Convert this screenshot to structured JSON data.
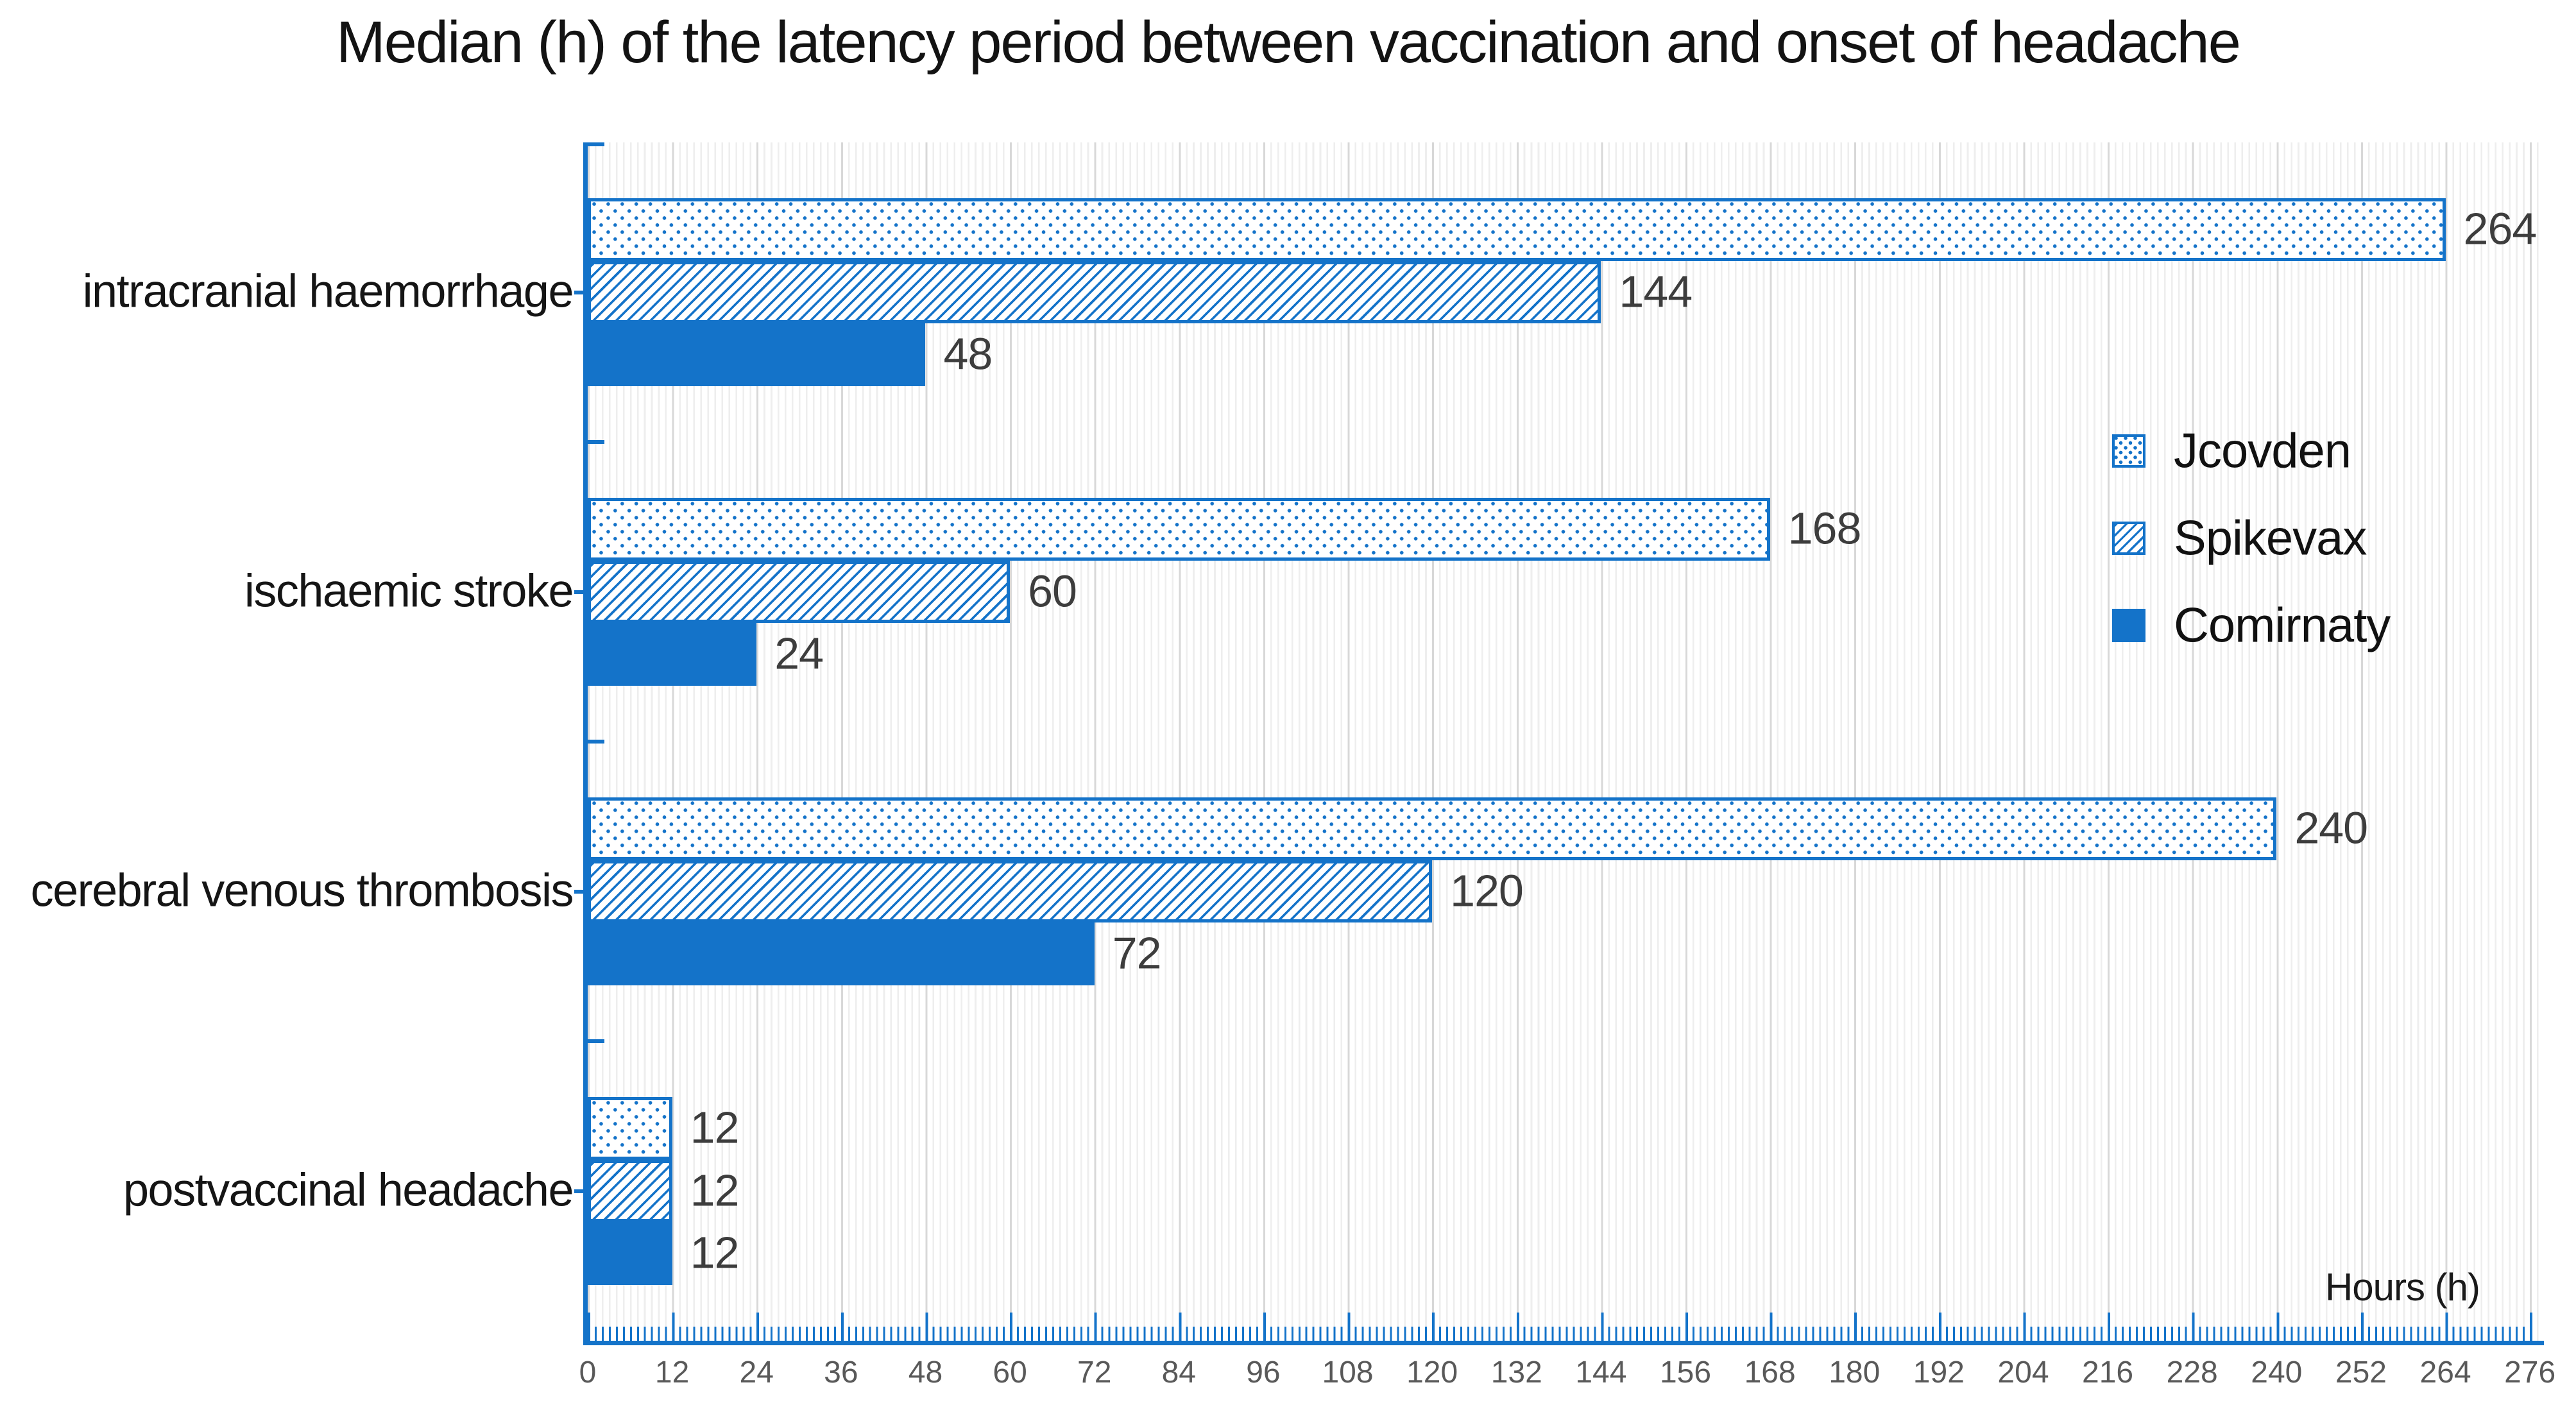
{
  "title": "Median (h) of the latency period between vaccination and onset of headache",
  "chart_data": {
    "type": "bar",
    "orientation": "horizontal",
    "title": "Median (h) of the latency period between vaccination and onset of headache",
    "categories": [
      "intracranial haemorrhage",
      "ischaemic stroke",
      "cerebral venous thrombosis",
      "postvaccinal headache"
    ],
    "series": [
      {
        "name": "Jcovden",
        "pattern": "dots",
        "values": [
          264,
          168,
          240,
          12
        ]
      },
      {
        "name": "Spikevax",
        "pattern": "diagonal-hatch",
        "values": [
          144,
          60,
          120,
          12
        ]
      },
      {
        "name": "Comirnaty",
        "pattern": "solid",
        "values": [
          48,
          24,
          72,
          12
        ]
      }
    ],
    "xlabel": "Hours (h)",
    "ylabel": "",
    "xlim": [
      0,
      276
    ],
    "x_tick_step": 12,
    "x_ticks": [
      0,
      12,
      24,
      36,
      48,
      60,
      72,
      84,
      96,
      108,
      120,
      132,
      144,
      156,
      168,
      180,
      192,
      204,
      216,
      228,
      240,
      252,
      264,
      276
    ],
    "grid": "vertical, minor every 1 h, major every 12 h",
    "legend_position": "upper right inside plot",
    "data_labels": "value at end of each bar",
    "colors": {
      "bar_blue": "#1473C9",
      "grid_minor": "#eeeeee",
      "grid_major": "#d8d8d8",
      "tick_label": "#595959",
      "data_label": "#3d3d3d",
      "title": "#131313"
    }
  },
  "legend": {
    "items": [
      {
        "label": "Jcovden"
      },
      {
        "label": "Spikevax"
      },
      {
        "label": "Comirnaty"
      }
    ]
  }
}
